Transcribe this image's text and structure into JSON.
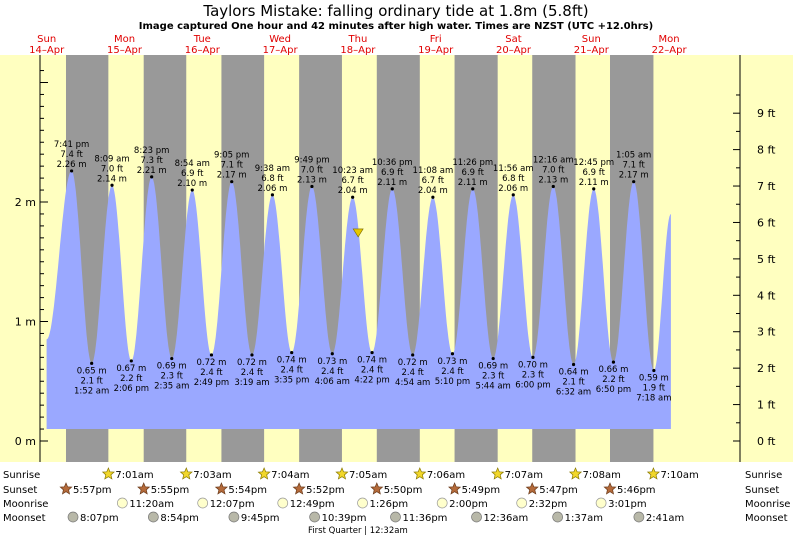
{
  "title": "Taylors Mistake: falling  ordinary tide at 1.8m (5.8ft)",
  "subtitle": "Image captured One hour and 42 minutes after high water. Times are NZST (UTC +12.0hrs)",
  "colors": {
    "day_bg": "#ffffc0",
    "night_bg": "#999999",
    "tide": "#9aa8ff",
    "day_label": "#e00000"
  },
  "days": [
    {
      "dow": "Sun",
      "date": "14–Apr"
    },
    {
      "dow": "Mon",
      "date": "15–Apr"
    },
    {
      "dow": "Tue",
      "date": "16–Apr"
    },
    {
      "dow": "Wed",
      "date": "17–Apr"
    },
    {
      "dow": "Thu",
      "date": "18–Apr"
    },
    {
      "dow": "Fri",
      "date": "19–Apr"
    },
    {
      "dow": "Sat",
      "date": "20–Apr"
    },
    {
      "dow": "Sun",
      "date": "21–Apr"
    },
    {
      "dow": "Mon",
      "date": "22–Apr"
    }
  ],
  "chart_data": {
    "type": "line",
    "title": "Taylors Mistake: falling  ordinary tide at 1.8m (5.8ft)",
    "y_left_unit": "m",
    "y_left_ticks": [
      "0 m",
      "1 m",
      "2 m"
    ],
    "y_right_ticks": [
      "0 ft",
      "1 ft",
      "2 ft",
      "3 ft",
      "4 ft",
      "5 ft",
      "6 ft",
      "7 ft",
      "8 ft",
      "9 ft"
    ],
    "tides": [
      {
        "type": "high",
        "time": "7:41 pm",
        "ft": "7.4 ft",
        "m": "2.26 m",
        "day": 0,
        "t": 19.68,
        "val": 2.26
      },
      {
        "type": "low",
        "time": "1:52 am",
        "ft": "2.1 ft",
        "m": "0.65 m",
        "day": 1,
        "t": 1.87,
        "val": 0.65
      },
      {
        "type": "high",
        "time": "8:09 am",
        "ft": "7.0 ft",
        "m": "2.14 m",
        "day": 1,
        "t": 8.15,
        "val": 2.14
      },
      {
        "type": "low",
        "time": "2:06 pm",
        "ft": "2.2 ft",
        "m": "0.67 m",
        "day": 1,
        "t": 14.1,
        "val": 0.67
      },
      {
        "type": "high",
        "time": "8:23 pm",
        "ft": "7.3 ft",
        "m": "2.21 m",
        "day": 1,
        "t": 20.38,
        "val": 2.21
      },
      {
        "type": "low",
        "time": "2:35 am",
        "ft": "2.3 ft",
        "m": "0.69 m",
        "day": 2,
        "t": 2.58,
        "val": 0.69
      },
      {
        "type": "high",
        "time": "8:54 am",
        "ft": "6.9 ft",
        "m": "2.10 m",
        "day": 2,
        "t": 8.9,
        "val": 2.1
      },
      {
        "type": "low",
        "time": "2:49 pm",
        "ft": "2.4 ft",
        "m": "0.72 m",
        "day": 2,
        "t": 14.82,
        "val": 0.72
      },
      {
        "type": "high",
        "time": "9:05 pm",
        "ft": "7.1 ft",
        "m": "2.17 m",
        "day": 2,
        "t": 21.08,
        "val": 2.17
      },
      {
        "type": "low",
        "time": "3:19 am",
        "ft": "2.4 ft",
        "m": "0.72 m",
        "day": 3,
        "t": 3.32,
        "val": 0.72
      },
      {
        "type": "high",
        "time": "9:38 am",
        "ft": "6.8 ft",
        "m": "2.06 m",
        "day": 3,
        "t": 9.63,
        "val": 2.06
      },
      {
        "type": "low",
        "time": "3:35 pm",
        "ft": "2.4 ft",
        "m": "0.74 m",
        "day": 3,
        "t": 15.58,
        "val": 0.74
      },
      {
        "type": "high",
        "time": "9:49 pm",
        "ft": "7.0 ft",
        "m": "2.13 m",
        "day": 3,
        "t": 21.82,
        "val": 2.13
      },
      {
        "type": "low",
        "time": "4:06 am",
        "ft": "2.4 ft",
        "m": "0.73 m",
        "day": 4,
        "t": 4.1,
        "val": 0.73
      },
      {
        "type": "high",
        "time": "10:23 am",
        "ft": "6.7 ft",
        "m": "2.04 m",
        "day": 4,
        "t": 10.38,
        "val": 2.04
      },
      {
        "type": "low",
        "time": "4:22 pm",
        "ft": "2.4 ft",
        "m": "0.74 m",
        "day": 4,
        "t": 16.37,
        "val": 0.74
      },
      {
        "type": "high",
        "time": "10:36 pm",
        "ft": "6.9 ft",
        "m": "2.11 m",
        "day": 4,
        "t": 22.6,
        "val": 2.11
      },
      {
        "type": "low",
        "time": "4:54 am",
        "ft": "2.4 ft",
        "m": "0.72 m",
        "day": 5,
        "t": 4.9,
        "val": 0.72
      },
      {
        "type": "high",
        "time": "11:08 am",
        "ft": "6.7 ft",
        "m": "2.04 m",
        "day": 5,
        "t": 11.13,
        "val": 2.04
      },
      {
        "type": "low",
        "time": "5:10 pm",
        "ft": "2.4 ft",
        "m": "0.73 m",
        "day": 5,
        "t": 17.17,
        "val": 0.73
      },
      {
        "type": "high",
        "time": "11:26 pm",
        "ft": "6.9 ft",
        "m": "2.11 m",
        "day": 5,
        "t": 23.43,
        "val": 2.11
      },
      {
        "type": "low",
        "time": "5:44 am",
        "ft": "2.3 ft",
        "m": "0.69 m",
        "day": 6,
        "t": 5.73,
        "val": 0.69
      },
      {
        "type": "high",
        "time": "11:56 am",
        "ft": "6.8 ft",
        "m": "2.06 m",
        "day": 6,
        "t": 11.93,
        "val": 2.06
      },
      {
        "type": "low",
        "time": "6:00 pm",
        "ft": "2.3 ft",
        "m": "0.70 m",
        "day": 6,
        "t": 18.0,
        "val": 0.7
      },
      {
        "type": "high",
        "time": "12:16 am",
        "ft": "7.0 ft",
        "m": "2.13 m",
        "day": 7,
        "t": 0.27,
        "val": 2.13
      },
      {
        "type": "low",
        "time": "6:32 am",
        "ft": "2.1 ft",
        "m": "0.64 m",
        "day": 7,
        "t": 6.53,
        "val": 0.64
      },
      {
        "type": "high",
        "time": "12:45 pm",
        "ft": "6.9 ft",
        "m": "2.11 m",
        "day": 7,
        "t": 12.75,
        "val": 2.11
      },
      {
        "type": "low",
        "time": "6:50 pm",
        "ft": "2.2 ft",
        "m": "0.66 m",
        "day": 7,
        "t": 18.83,
        "val": 0.66
      },
      {
        "type": "high",
        "time": "1:05 am",
        "ft": "7.1 ft",
        "m": "2.17 m",
        "day": 8,
        "t": 1.08,
        "val": 2.17
      },
      {
        "type": "low",
        "time": "7:18 am",
        "ft": "1.9 ft",
        "m": "0.59 m",
        "day": 8,
        "t": 7.3,
        "val": 0.59
      }
    ],
    "current": {
      "day": 4,
      "t": 12.08,
      "val": 1.8
    }
  },
  "sun_moon": {
    "row_labels": [
      "Sunrise",
      "Sunset",
      "Moonrise",
      "Moonset"
    ],
    "sunrise": [
      {
        "day": 1,
        "t": 7.02,
        "time": "7:01am"
      },
      {
        "day": 2,
        "t": 7.05,
        "time": "7:03am"
      },
      {
        "day": 3,
        "t": 7.07,
        "time": "7:04am"
      },
      {
        "day": 4,
        "t": 7.08,
        "time": "7:05am"
      },
      {
        "day": 5,
        "t": 7.1,
        "time": "7:06am"
      },
      {
        "day": 6,
        "t": 7.12,
        "time": "7:07am"
      },
      {
        "day": 7,
        "t": 7.13,
        "time": "7:08am"
      },
      {
        "day": 8,
        "t": 7.17,
        "time": "7:10am"
      }
    ],
    "sunset": [
      {
        "day": 0,
        "t": 17.95,
        "time": "5:57pm"
      },
      {
        "day": 1,
        "t": 17.92,
        "time": "5:55pm"
      },
      {
        "day": 2,
        "t": 17.9,
        "time": "5:54pm"
      },
      {
        "day": 3,
        "t": 17.87,
        "time": "5:52pm"
      },
      {
        "day": 4,
        "t": 17.83,
        "time": "5:50pm"
      },
      {
        "day": 5,
        "t": 17.82,
        "time": "5:49pm"
      },
      {
        "day": 6,
        "t": 17.78,
        "time": "5:47pm"
      },
      {
        "day": 7,
        "t": 17.77,
        "time": "5:46pm"
      }
    ],
    "moonrise": [
      {
        "day": 1,
        "t": 11.33,
        "time": "11:20am"
      },
      {
        "day": 2,
        "t": 12.12,
        "time": "12:07pm"
      },
      {
        "day": 3,
        "t": 12.82,
        "time": "12:49pm"
      },
      {
        "day": 4,
        "t": 13.43,
        "time": "1:26pm"
      },
      {
        "day": 5,
        "t": 14.0,
        "time": "2:00pm"
      },
      {
        "day": 6,
        "t": 14.53,
        "time": "2:32pm"
      },
      {
        "day": 7,
        "t": 15.02,
        "time": "3:01pm"
      }
    ],
    "moonset": [
      {
        "day": 0,
        "t": 20.12,
        "time": "8:07pm"
      },
      {
        "day": 1,
        "t": 20.9,
        "time": "8:54pm"
      },
      {
        "day": 2,
        "t": 21.75,
        "time": "9:45pm"
      },
      {
        "day": 3,
        "t": 22.65,
        "time": "10:39pm"
      },
      {
        "day": 4,
        "t": 23.6,
        "time": "11:36pm"
      },
      {
        "day": 6,
        "t": 0.6,
        "time": "12:36am"
      },
      {
        "day": 7,
        "t": 1.62,
        "time": "1:37am"
      },
      {
        "day": 8,
        "t": 2.68,
        "time": "2:41am"
      }
    ],
    "moon_phase": "First Quarter | 12:32am"
  }
}
